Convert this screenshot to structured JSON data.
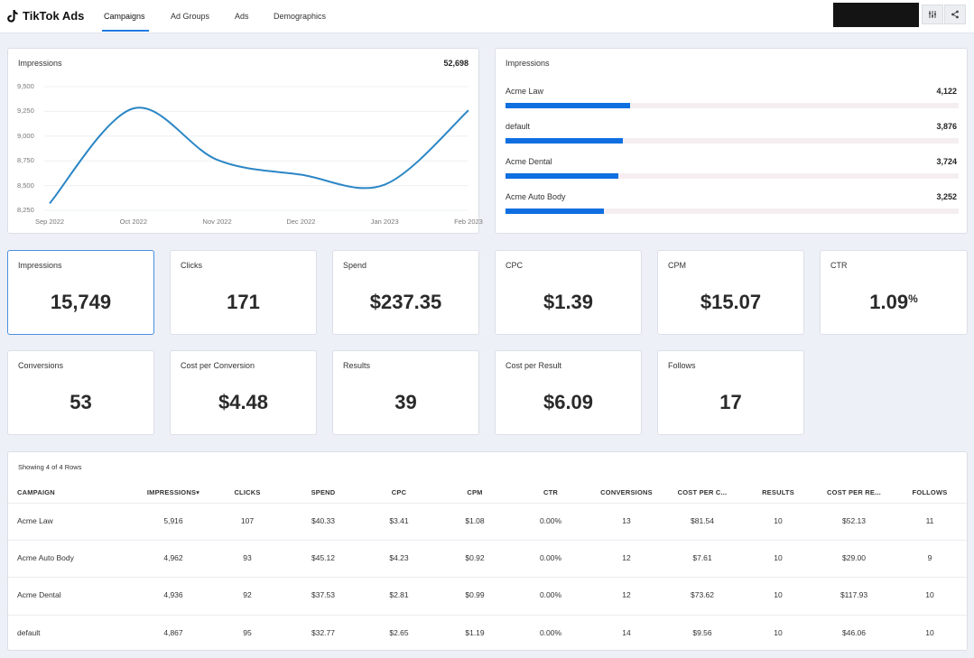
{
  "header": {
    "brand": "TikTok Ads",
    "tabs": [
      "Campaigns",
      "Ad Groups",
      "Ads",
      "Demographics"
    ],
    "active_tab": "Campaigns",
    "icons": [
      "sliders-icon",
      "share-icon"
    ]
  },
  "impressions_chart": {
    "label": "Impressions",
    "total": "52,698",
    "chart_data": {
      "type": "line",
      "x": [
        "Sep 2022",
        "Oct 2022",
        "Nov 2022",
        "Dec 2022",
        "Jan 2023",
        "Feb 2023"
      ],
      "values": [
        8320,
        9280,
        8760,
        8610,
        8510,
        9260
      ],
      "y_ticks": [
        "9,500",
        "9,250",
        "9,000",
        "8,750",
        "8,500",
        "8,250"
      ],
      "ylim": [
        8250,
        9500
      ],
      "grid": true,
      "line_color": "#2b86c5"
    }
  },
  "impressions_bars": {
    "label": "Impressions",
    "chart_data": {
      "type": "bar",
      "orientation": "horizontal",
      "categories": [
        "Acme Law",
        "default",
        "Acme Dental",
        "Acme Auto Body"
      ],
      "values": [
        4122,
        3876,
        3724,
        3252
      ],
      "labels": [
        "4,122",
        "3,876",
        "3,724",
        "3,252"
      ],
      "bar_color": "#0f6fe0"
    }
  },
  "metrics_row1": [
    {
      "label": "Impressions",
      "value": "15,749"
    },
    {
      "label": "Clicks",
      "value": "171"
    },
    {
      "label": "Spend",
      "value": "$237.35"
    },
    {
      "label": "CPC",
      "value": "$1.39"
    },
    {
      "label": "CPM",
      "value": "$15.07"
    },
    {
      "label": "CTR",
      "value": "1.09",
      "suffix": "%"
    }
  ],
  "metrics_row2": [
    {
      "label": "Conversions",
      "value": "53"
    },
    {
      "label": "Cost per Conversion",
      "value": "$4.48"
    },
    {
      "label": "Results",
      "value": "39"
    },
    {
      "label": "Cost per Result",
      "value": "$6.09"
    },
    {
      "label": "Follows",
      "value": "17"
    }
  ],
  "table": {
    "showing": "Showing 4 of 4 Rows",
    "columns": [
      "CAMPAIGN",
      "IMPRESSIONS",
      "CLICKS",
      "SPEND",
      "CPC",
      "CPM",
      "CTR",
      "CONVERSIONS",
      "COST PER C...",
      "RESULTS",
      "COST PER RE...",
      "FOLLOWS"
    ],
    "rows": [
      [
        "Acme Law",
        "5,916",
        "107",
        "$40.33",
        "$3.41",
        "$1.08",
        "0.00%",
        "13",
        "$81.54",
        "10",
        "$52.13",
        "11"
      ],
      [
        "Acme Auto Body",
        "4,962",
        "93",
        "$45.12",
        "$4.23",
        "$0.92",
        "0.00%",
        "12",
        "$7.61",
        "10",
        "$29.00",
        "9"
      ],
      [
        "Acme Dental",
        "4,936",
        "92",
        "$37.53",
        "$2.81",
        "$0.99",
        "0.00%",
        "12",
        "$73.62",
        "10",
        "$117.93",
        "10"
      ],
      [
        "default",
        "4,867",
        "95",
        "$32.77",
        "$2.65",
        "$1.19",
        "0.00%",
        "14",
        "$9.56",
        "10",
        "$46.06",
        "10"
      ]
    ]
  }
}
